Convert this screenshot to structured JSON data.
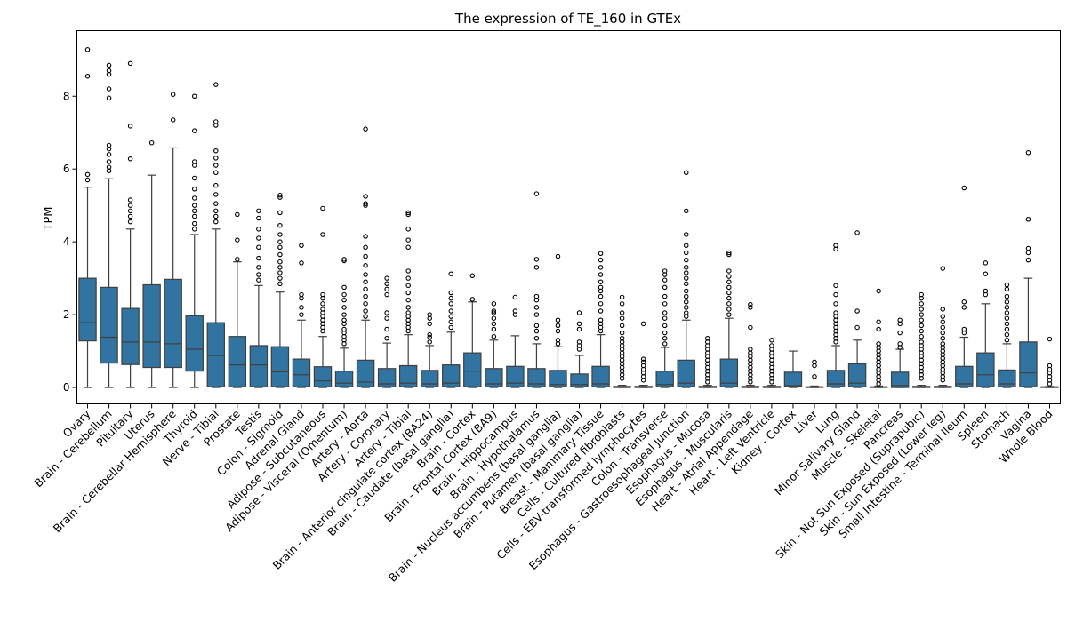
{
  "chart_data": {
    "type": "box",
    "title": "The expression of TE_160 in GTEx",
    "xlabel": "",
    "ylabel": "TPM",
    "ylim": [
      -0.45,
      9.8
    ],
    "yticks": [
      0,
      2,
      4,
      6,
      8
    ],
    "grid": false,
    "categories": [
      "Ovary",
      "Brain - Cerebellum",
      "Pituitary",
      "Uterus",
      "Brain - Cerebellar Hemisphere",
      "Thyroid",
      "Nerve - Tibial",
      "Prostate",
      "Testis",
      "Colon - Sigmoid",
      "Adrenal Gland",
      "Adipose - Subcutaneous",
      "Adipose - Visceral (Omentum)",
      "Artery - Aorta",
      "Artery - Coronary",
      "Artery - Tibial",
      "Brain - Anterior cingulate cortex (BA24)",
      "Brain - Caudate (basal ganglia)",
      "Brain - Cortex",
      "Brain - Frontal Cortex (BA9)",
      "Brain - Hippocampus",
      "Brain - Hypothalamus",
      "Brain - Nucleus accumbens (basal ganglia)",
      "Brain - Putamen (basal ganglia)",
      "Breast - Mammary Tissue",
      "Cells - Cultured fibroblasts",
      "Cells - EBV-transformed lymphocytes",
      "Colon - Transverse",
      "Esophagus - Gastroesophageal Junction",
      "Esophagus - Mucosa",
      "Esophagus - Muscularis",
      "Heart - Atrial Appendage",
      "Heart - Left Ventricle",
      "Kidney - Cortex",
      "Liver",
      "Lung",
      "Minor Salivary Gland",
      "Muscle - Skeletal",
      "Pancreas",
      "Skin - Not Sun Exposed (Suprapubic)",
      "Skin - Sun Exposed (Lower leg)",
      "Small Intestine - Terminal Ileum",
      "Spleen",
      "Stomach",
      "Vagina",
      "Whole Blood"
    ],
    "boxes": [
      {
        "min": 0,
        "q1": 1.28,
        "median": 1.78,
        "q3": 3.0,
        "max": 5.5,
        "fliers": [
          5.7,
          5.85,
          8.55,
          9.28
        ]
      },
      {
        "min": 0,
        "q1": 0.67,
        "median": 1.38,
        "q3": 2.75,
        "max": 5.73,
        "fliers": [
          5.95,
          6.05,
          6.2,
          6.4,
          6.55,
          6.65,
          7.95,
          8.2,
          8.6,
          8.7,
          8.85
        ]
      },
      {
        "min": 0,
        "q1": 0.63,
        "median": 1.25,
        "q3": 2.17,
        "max": 4.35,
        "fliers": [
          4.55,
          4.7,
          4.85,
          5.0,
          5.15,
          6.28,
          7.18,
          8.9
        ]
      },
      {
        "min": 0,
        "q1": 0.55,
        "median": 1.25,
        "q3": 2.82,
        "max": 5.83,
        "fliers": [
          6.72
        ]
      },
      {
        "min": 0,
        "q1": 0.55,
        "median": 1.2,
        "q3": 2.97,
        "max": 6.58,
        "fliers": [
          7.35,
          8.05
        ]
      },
      {
        "min": 0,
        "q1": 0.45,
        "median": 1.05,
        "q3": 1.97,
        "max": 4.2,
        "fliers": [
          4.35,
          4.5,
          4.7,
          4.85,
          5.0,
          5.2,
          5.45,
          5.75,
          6.1,
          6.2,
          7.05,
          8.0
        ]
      },
      {
        "min": 0,
        "q1": 0.02,
        "median": 0.88,
        "q3": 1.78,
        "max": 4.35,
        "fliers": [
          4.55,
          4.7,
          4.85,
          5.05,
          5.3,
          5.55,
          5.9,
          6.1,
          6.3,
          6.5,
          7.2,
          7.3,
          8.32
        ]
      },
      {
        "min": 0,
        "q1": 0.02,
        "median": 0.62,
        "q3": 1.4,
        "max": 3.45,
        "fliers": [
          3.52,
          4.05,
          4.75
        ]
      },
      {
        "min": 0,
        "q1": 0.02,
        "median": 0.62,
        "q3": 1.15,
        "max": 2.8,
        "fliers": [
          2.95,
          3.1,
          3.3,
          3.55,
          3.85,
          4.1,
          4.35,
          4.65,
          4.85
        ]
      },
      {
        "min": 0,
        "q1": 0.02,
        "median": 0.43,
        "q3": 1.12,
        "max": 2.62,
        "fliers": [
          2.85,
          3.0,
          3.15,
          3.3,
          3.45,
          3.65,
          3.85,
          4.0,
          4.2,
          4.45,
          4.8,
          5.22,
          5.28
        ]
      },
      {
        "min": 0,
        "q1": 0.02,
        "median": 0.35,
        "q3": 0.78,
        "max": 1.85,
        "fliers": [
          2.0,
          2.2,
          2.45,
          2.55,
          3.42,
          3.9
        ]
      },
      {
        "min": 0,
        "q1": 0.02,
        "median": 0.18,
        "q3": 0.57,
        "max": 1.4,
        "fliers": [
          1.55,
          1.65,
          1.75,
          1.85,
          1.95,
          2.05,
          2.15,
          2.3,
          2.45,
          2.55,
          4.2,
          4.92
        ]
      },
      {
        "min": 0,
        "q1": 0.02,
        "median": 0.12,
        "q3": 0.45,
        "max": 1.08,
        "fliers": [
          1.2,
          1.3,
          1.4,
          1.5,
          1.6,
          1.75,
          1.85,
          2.0,
          2.2,
          2.4,
          2.55,
          2.75,
          3.48,
          3.52
        ]
      },
      {
        "min": 0,
        "q1": 0.02,
        "median": 0.15,
        "q3": 0.75,
        "max": 1.85,
        "fliers": [
          1.95,
          2.1,
          2.3,
          2.5,
          2.7,
          2.9,
          3.1,
          3.35,
          3.6,
          3.85,
          4.15,
          5.0,
          5.05,
          5.25,
          7.1
        ]
      },
      {
        "min": 0,
        "q1": 0.02,
        "median": 0.1,
        "q3": 0.52,
        "max": 1.22,
        "fliers": [
          1.35,
          1.6,
          1.9,
          2.05,
          2.55,
          2.7,
          2.85,
          3.0
        ]
      },
      {
        "min": 0,
        "q1": 0.02,
        "median": 0.12,
        "q3": 0.6,
        "max": 1.45,
        "fliers": [
          1.55,
          1.65,
          1.75,
          1.85,
          1.95,
          2.05,
          2.2,
          2.4,
          2.6,
          2.8,
          3.0,
          3.2,
          3.85,
          4.05,
          4.35,
          4.75,
          4.8
        ]
      },
      {
        "min": 0,
        "q1": 0.02,
        "median": 0.1,
        "q3": 0.47,
        "max": 1.15,
        "fliers": [
          1.25,
          1.38,
          1.45,
          1.75,
          1.9,
          2.0
        ]
      },
      {
        "min": 0,
        "q1": 0.02,
        "median": 0.12,
        "q3": 0.62,
        "max": 1.52,
        "fliers": [
          1.65,
          1.8,
          1.95,
          2.1,
          2.3,
          2.45,
          2.6,
          3.12
        ]
      },
      {
        "min": 0,
        "q1": 0.02,
        "median": 0.45,
        "q3": 0.95,
        "max": 2.35,
        "fliers": [
          2.42,
          3.07
        ]
      },
      {
        "min": 0,
        "q1": 0.02,
        "median": 0.1,
        "q3": 0.52,
        "max": 1.3,
        "fliers": [
          1.4,
          1.6,
          1.75,
          1.9,
          2.05,
          2.1,
          2.3
        ]
      },
      {
        "min": 0,
        "q1": 0.02,
        "median": 0.12,
        "q3": 0.58,
        "max": 1.42,
        "fliers": [
          2.0,
          2.1,
          2.48
        ]
      },
      {
        "min": 0,
        "q1": 0.02,
        "median": 0.1,
        "q3": 0.52,
        "max": 1.2,
        "fliers": [
          1.35,
          1.55,
          1.7,
          2.0,
          2.2,
          2.4,
          2.5,
          3.3,
          3.52,
          5.32
        ]
      },
      {
        "min": 0,
        "q1": 0.02,
        "median": 0.08,
        "q3": 0.47,
        "max": 1.12,
        "fliers": [
          1.2,
          1.3,
          1.55,
          1.7,
          1.85,
          3.6
        ]
      },
      {
        "min": 0,
        "q1": 0.02,
        "median": 0.08,
        "q3": 0.37,
        "max": 0.88,
        "fliers": [
          1.05,
          1.15,
          1.25,
          1.6,
          1.75,
          2.05
        ]
      },
      {
        "min": 0,
        "q1": 0.02,
        "median": 0.1,
        "q3": 0.58,
        "max": 1.45,
        "fliers": [
          1.55,
          1.65,
          1.75,
          1.85,
          2.1,
          2.3,
          2.5,
          2.65,
          2.75,
          2.9,
          3.1,
          3.3,
          3.5,
          3.68
        ]
      },
      {
        "min": 0,
        "q1": 0.0,
        "median": 0.01,
        "q3": 0.03,
        "max": 0.06,
        "fliers": [
          0.25,
          0.35,
          0.45,
          0.55,
          0.65,
          0.75,
          0.85,
          0.95,
          1.05,
          1.15,
          1.25,
          1.35,
          1.5,
          1.7,
          1.9,
          2.05,
          2.3,
          2.48
        ]
      },
      {
        "min": 0,
        "q1": 0.0,
        "median": 0.01,
        "q3": 0.03,
        "max": 0.06,
        "fliers": [
          0.2,
          0.3,
          0.4,
          0.5,
          0.6,
          0.7,
          0.78,
          1.75
        ]
      },
      {
        "min": 0,
        "q1": 0.02,
        "median": 0.08,
        "q3": 0.45,
        "max": 1.1,
        "fliers": [
          1.2,
          1.35,
          1.5,
          1.7,
          1.9,
          2.05,
          2.3,
          2.5,
          2.75,
          2.95,
          3.1,
          3.2
        ]
      },
      {
        "min": 0,
        "q1": 0.02,
        "median": 0.12,
        "q3": 0.75,
        "max": 1.85,
        "fliers": [
          1.95,
          2.05,
          2.2,
          2.35,
          2.5,
          2.65,
          2.85,
          3.0,
          3.15,
          3.3,
          3.5,
          3.7,
          3.9,
          4.2,
          4.85,
          5.9
        ]
      },
      {
        "min": 0,
        "q1": 0.0,
        "median": 0.01,
        "q3": 0.03,
        "max": 0.06,
        "fliers": [
          0.15,
          0.25,
          0.35,
          0.45,
          0.55,
          0.65,
          0.75,
          0.85,
          0.95,
          1.05,
          1.15,
          1.25,
          1.35
        ]
      },
      {
        "min": 0,
        "q1": 0.02,
        "median": 0.12,
        "q3": 0.78,
        "max": 1.9,
        "fliers": [
          2.0,
          2.15,
          2.3,
          2.45,
          2.6,
          2.75,
          2.9,
          3.05,
          3.2,
          3.65,
          3.7
        ]
      },
      {
        "min": 0,
        "q1": 0.0,
        "median": 0.01,
        "q3": 0.03,
        "max": 0.06,
        "fliers": [
          0.15,
          0.25,
          0.35,
          0.45,
          0.55,
          0.65,
          0.75,
          0.85,
          0.95,
          1.05,
          1.65,
          2.2,
          2.28
        ]
      },
      {
        "min": 0,
        "q1": 0.0,
        "median": 0.01,
        "q3": 0.03,
        "max": 0.06,
        "fliers": [
          0.15,
          0.25,
          0.35,
          0.45,
          0.55,
          0.65,
          0.75,
          0.85,
          0.95,
          1.05,
          1.15,
          1.3
        ]
      },
      {
        "min": 0,
        "q1": 0.02,
        "median": 0.05,
        "q3": 0.42,
        "max": 1.0,
        "fliers": []
      },
      {
        "min": 0,
        "q1": 0.0,
        "median": 0.01,
        "q3": 0.02,
        "max": 0.04,
        "fliers": [
          0.3,
          0.6,
          0.7
        ]
      },
      {
        "min": 0,
        "q1": 0.02,
        "median": 0.1,
        "q3": 0.47,
        "max": 1.15,
        "fliers": [
          1.25,
          1.35,
          1.45,
          1.55,
          1.65,
          1.75,
          1.85,
          1.95,
          2.05,
          2.3,
          2.55,
          2.8,
          3.8,
          3.9
        ]
      },
      {
        "min": 0,
        "q1": 0.02,
        "median": 0.12,
        "q3": 0.65,
        "max": 1.3,
        "fliers": [
          1.65,
          2.1,
          4.25
        ]
      },
      {
        "min": 0,
        "q1": 0.0,
        "median": 0.01,
        "q3": 0.02,
        "max": 0.04,
        "fliers": [
          0.1,
          0.2,
          0.3,
          0.4,
          0.5,
          0.6,
          0.7,
          0.8,
          0.9,
          1.0,
          1.1,
          1.2,
          1.6,
          1.8,
          2.65
        ]
      },
      {
        "min": 0,
        "q1": 0.0,
        "median": 0.05,
        "q3": 0.42,
        "max": 1.05,
        "fliers": [
          1.1,
          1.2,
          1.5,
          1.75,
          1.85
        ]
      },
      {
        "min": 0,
        "q1": 0.0,
        "median": 0.01,
        "q3": 0.03,
        "max": 0.06,
        "fliers": [
          0.25,
          0.35,
          0.45,
          0.55,
          0.65,
          0.75,
          0.85,
          0.95,
          1.05,
          1.15,
          1.25,
          1.4,
          1.55,
          1.7,
          1.85,
          2.0,
          2.15,
          2.3,
          2.45,
          2.55
        ]
      },
      {
        "min": 0,
        "q1": 0.0,
        "median": 0.01,
        "q3": 0.03,
        "max": 0.06,
        "fliers": [
          0.2,
          0.3,
          0.4,
          0.5,
          0.6,
          0.7,
          0.8,
          0.9,
          1.0,
          1.1,
          1.2,
          1.35,
          1.5,
          1.65,
          1.8,
          1.95,
          2.15,
          3.27
        ]
      },
      {
        "min": 0,
        "q1": 0.02,
        "median": 0.1,
        "q3": 0.58,
        "max": 1.38,
        "fliers": [
          1.5,
          1.6,
          2.2,
          2.35,
          5.48
        ]
      },
      {
        "min": 0,
        "q1": 0.02,
        "median": 0.35,
        "q3": 0.95,
        "max": 2.3,
        "fliers": [
          2.55,
          2.65,
          3.12,
          3.42
        ]
      },
      {
        "min": 0,
        "q1": 0.02,
        "median": 0.1,
        "q3": 0.48,
        "max": 1.2,
        "fliers": [
          1.3,
          1.45,
          1.6,
          1.75,
          1.9,
          2.05,
          2.2,
          2.35,
          2.5,
          2.7,
          2.82
        ]
      },
      {
        "min": 0,
        "q1": 0.02,
        "median": 0.4,
        "q3": 1.25,
        "max": 3.0,
        "fliers": [
          3.5,
          3.7,
          3.82,
          4.62,
          6.45
        ]
      },
      {
        "min": 0,
        "q1": 0.0,
        "median": 0.01,
        "q3": 0.02,
        "max": 0.03,
        "fliers": [
          0.1,
          0.2,
          0.3,
          0.4,
          0.5,
          0.6,
          1.33
        ]
      }
    ]
  }
}
